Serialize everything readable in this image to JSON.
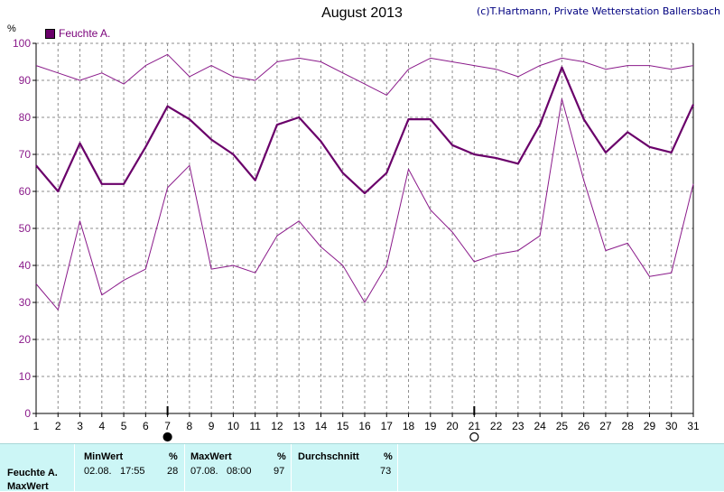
{
  "window": {
    "title": "August 2013",
    "copyright": "(c)T.Hartmann, Private Wetterstation Ballersbach",
    "unit": "%"
  },
  "legend": {
    "label": "Feuchte A."
  },
  "chart_data": {
    "type": "line",
    "title": "August 2013",
    "ylabel": "%",
    "xlabel": "",
    "ylim": [
      0,
      100
    ],
    "xlim": [
      1,
      31
    ],
    "yticks": [
      0,
      10,
      20,
      30,
      40,
      50,
      60,
      70,
      80,
      90,
      100
    ],
    "x": [
      1,
      2,
      3,
      4,
      5,
      6,
      7,
      8,
      9,
      10,
      11,
      12,
      13,
      14,
      15,
      16,
      17,
      18,
      19,
      20,
      21,
      22,
      23,
      24,
      25,
      26,
      27,
      28,
      29,
      30,
      31
    ],
    "grid": true,
    "legend_position": "top-left",
    "series": [
      {
        "name": "Feuchte A.",
        "role": "max",
        "color": "#8a1a8a",
        "width": 1,
        "values": [
          94,
          92,
          90,
          92,
          89,
          94,
          97,
          91,
          94,
          91,
          90,
          95,
          96,
          95,
          92,
          89,
          86,
          93,
          96,
          95,
          94,
          93,
          91,
          94,
          96,
          95,
          93,
          94,
          94,
          93,
          94
        ]
      },
      {
        "name": "Feuchte A.",
        "role": "mean",
        "color": "#6a006a",
        "width": 2.2,
        "values": [
          67,
          60,
          73,
          62,
          62,
          72,
          83,
          79.5,
          74,
          70,
          63,
          78,
          80,
          73.5,
          65,
          59.5,
          65,
          79.5,
          79.5,
          72.5,
          70,
          69,
          67.5,
          78,
          93.5,
          79.5,
          70.5,
          76,
          72,
          70.5,
          83.5
        ]
      },
      {
        "name": "Feuchte A.",
        "role": "min",
        "color": "#8a1a8a",
        "width": 1,
        "values": [
          35,
          28,
          52,
          32,
          36,
          39,
          61,
          67,
          39,
          40,
          38,
          48,
          52,
          45,
          40,
          30,
          40,
          66,
          55,
          49,
          41,
          43,
          44,
          48,
          85,
          63,
          44,
          46,
          37,
          38,
          62
        ]
      }
    ],
    "markers": [
      {
        "x": 7,
        "symbol": "filled-circle"
      },
      {
        "x": 21,
        "symbol": "open-circle"
      }
    ]
  },
  "footer": {
    "row_label": "Feuchte A.",
    "row_label2": "MaxWert",
    "columns": [
      {
        "header": "MinWert",
        "unit": "%",
        "date": "02.08.",
        "time": "17:55",
        "value": "28"
      },
      {
        "header": "MaxWert",
        "unit": "%",
        "date": "07.08.",
        "time": "08:00",
        "value": "97"
      },
      {
        "header": "Durchschnitt",
        "unit": "%",
        "date": "",
        "time": "",
        "value": "73"
      }
    ]
  },
  "colors": {
    "axis": "#000000",
    "grid": "#8c8c8c",
    "tick_label_y": "#8a1a8a",
    "footer_bg": "#ccf6f6"
  }
}
